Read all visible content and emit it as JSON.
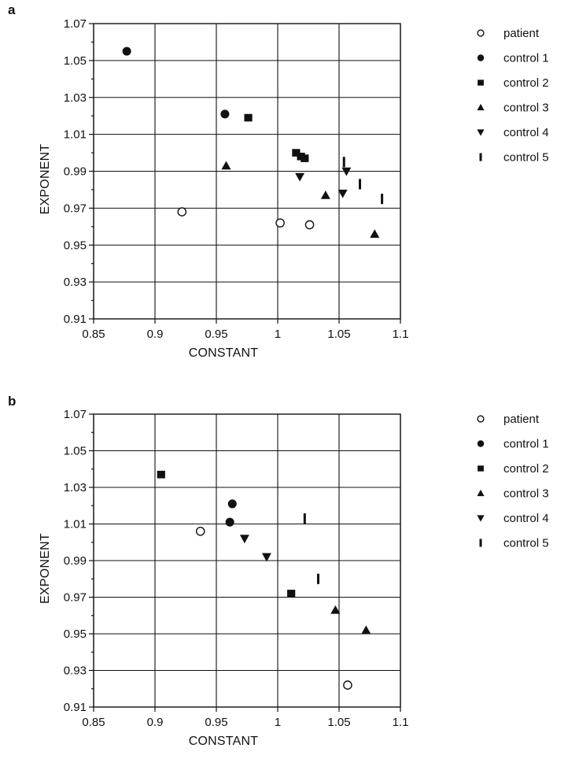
{
  "chart_data": [
    {
      "type": "scatter",
      "panel": "a",
      "xlabel": "CONSTANT",
      "ylabel": "EXPONENT",
      "xlim": [
        0.85,
        1.1
      ],
      "ylim": [
        0.91,
        1.07
      ],
      "x_ticks": [
        "0.85",
        "0.9",
        "0.95",
        "1",
        "1.05",
        "1.1"
      ],
      "y_ticks": [
        "1.07",
        "1.05",
        "1.03",
        "1.01",
        "0.99",
        "0.97",
        "0.95",
        "0.93",
        "0.91"
      ],
      "grid": true,
      "legend_position": "right",
      "series": [
        {
          "name": "patient",
          "marker": "circle-open",
          "points": [
            [
              0.922,
              0.968
            ],
            [
              1.002,
              0.962
            ],
            [
              1.026,
              0.961
            ]
          ]
        },
        {
          "name": "control 1",
          "marker": "circle",
          "points": [
            [
              0.877,
              1.055
            ],
            [
              0.957,
              1.021
            ]
          ]
        },
        {
          "name": "control 2",
          "marker": "square",
          "points": [
            [
              0.976,
              1.019
            ],
            [
              1.015,
              1.0
            ],
            [
              1.019,
              0.998
            ],
            [
              1.022,
              0.997
            ]
          ]
        },
        {
          "name": "control 3",
          "marker": "triangle-up",
          "points": [
            [
              0.958,
              0.993
            ],
            [
              1.039,
              0.977
            ],
            [
              1.079,
              0.956
            ]
          ]
        },
        {
          "name": "control 4",
          "marker": "triangle-down",
          "points": [
            [
              1.018,
              0.987
            ],
            [
              1.053,
              0.978
            ],
            [
              1.056,
              0.99
            ]
          ]
        },
        {
          "name": "control 5",
          "marker": "bar",
          "points": [
            [
              1.054,
              0.995
            ],
            [
              1.067,
              0.983
            ],
            [
              1.085,
              0.975
            ]
          ]
        }
      ]
    },
    {
      "type": "scatter",
      "panel": "b",
      "xlabel": "CONSTANT",
      "ylabel": "EXPONENT",
      "xlim": [
        0.85,
        1.1
      ],
      "ylim": [
        0.91,
        1.07
      ],
      "x_ticks": [
        "0.85",
        "0.9",
        "0.95",
        "1",
        "1.05",
        "1.1"
      ],
      "y_ticks": [
        "1.07",
        "1.05",
        "1.03",
        "1.01",
        "0.99",
        "0.97",
        "0.95",
        "0.93",
        "0.91"
      ],
      "grid": true,
      "legend_position": "right",
      "series": [
        {
          "name": "patient",
          "marker": "circle-open",
          "points": [
            [
              0.937,
              1.006
            ],
            [
              1.057,
              0.922
            ]
          ]
        },
        {
          "name": "control 1",
          "marker": "circle",
          "points": [
            [
              0.961,
              1.011
            ],
            [
              0.963,
              1.021
            ]
          ]
        },
        {
          "name": "control 2",
          "marker": "square",
          "points": [
            [
              0.905,
              1.037
            ],
            [
              1.011,
              0.972
            ]
          ]
        },
        {
          "name": "control 3",
          "marker": "triangle-up",
          "points": [
            [
              1.047,
              0.963
            ],
            [
              1.072,
              0.952
            ]
          ]
        },
        {
          "name": "control 4",
          "marker": "triangle-down",
          "points": [
            [
              0.973,
              1.002
            ],
            [
              0.991,
              0.992
            ]
          ]
        },
        {
          "name": "control 5",
          "marker": "bar",
          "points": [
            [
              1.022,
              1.013
            ],
            [
              1.033,
              0.98
            ]
          ]
        }
      ]
    }
  ]
}
